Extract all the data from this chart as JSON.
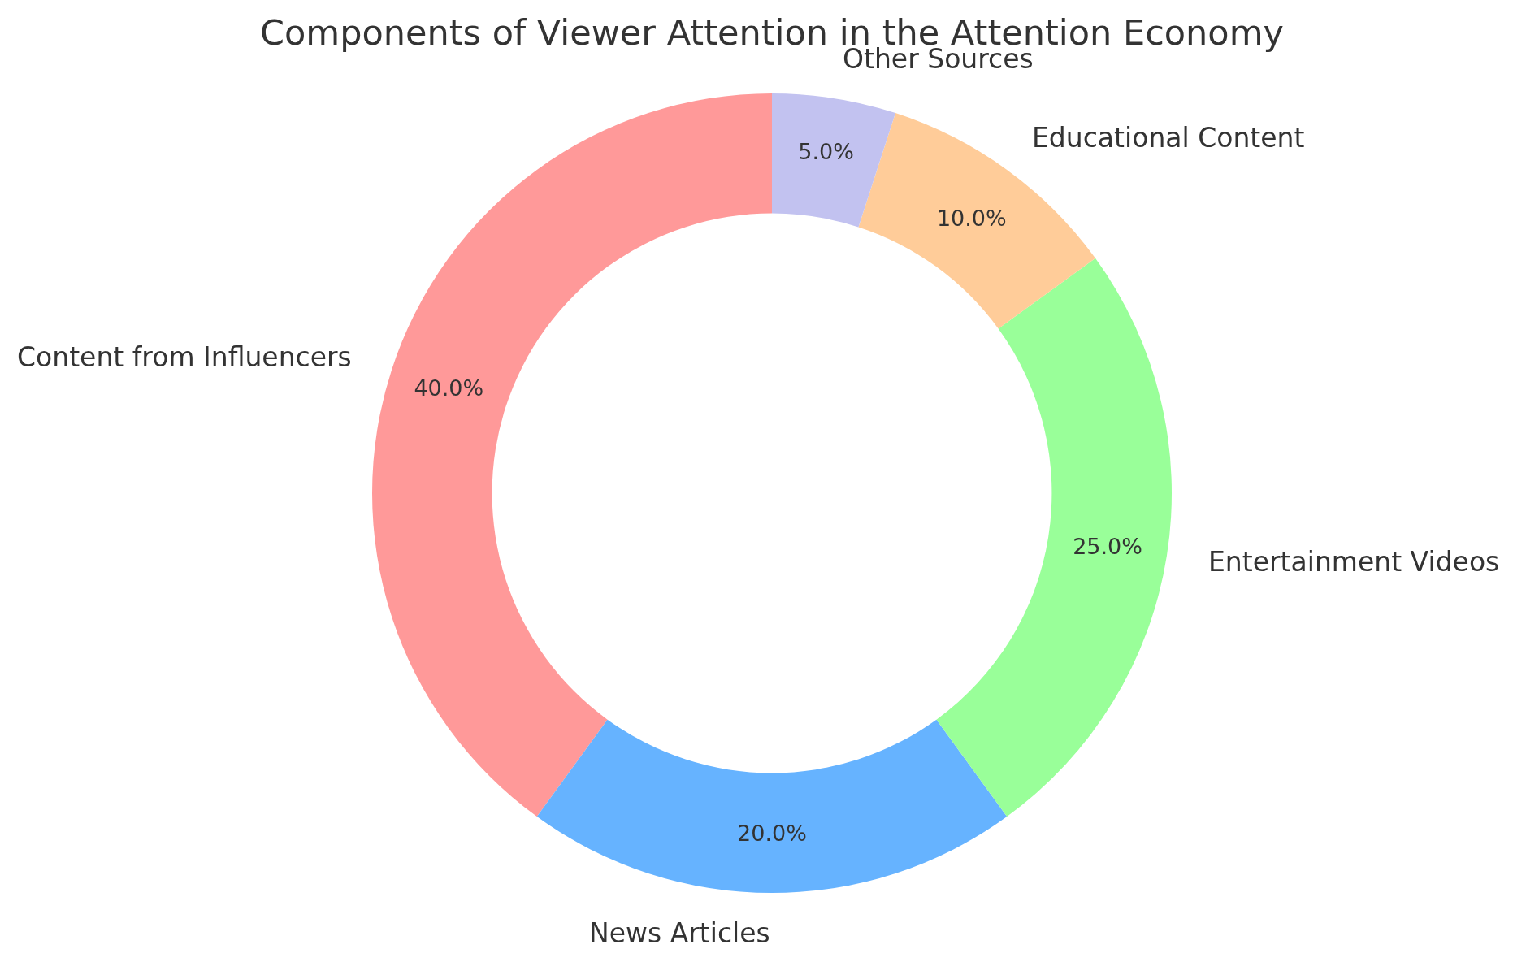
{
  "chart_data": {
    "type": "donut",
    "title": "Components of Viewer Attention in the Attention Economy",
    "categories": [
      "Content from Influencers",
      "News Articles",
      "Entertainment Videos",
      "Educational Content",
      "Other Sources"
    ],
    "values": [
      40,
      20,
      25,
      10,
      5
    ],
    "colors": [
      "#ff9999",
      "#66b3ff",
      "#99ff99",
      "#ffcc99",
      "#c2c2f0"
    ],
    "value_labels": [
      "40.0%",
      "20.0%",
      "25.0%",
      "10.0%",
      "5.0%"
    ],
    "legend": false
  }
}
